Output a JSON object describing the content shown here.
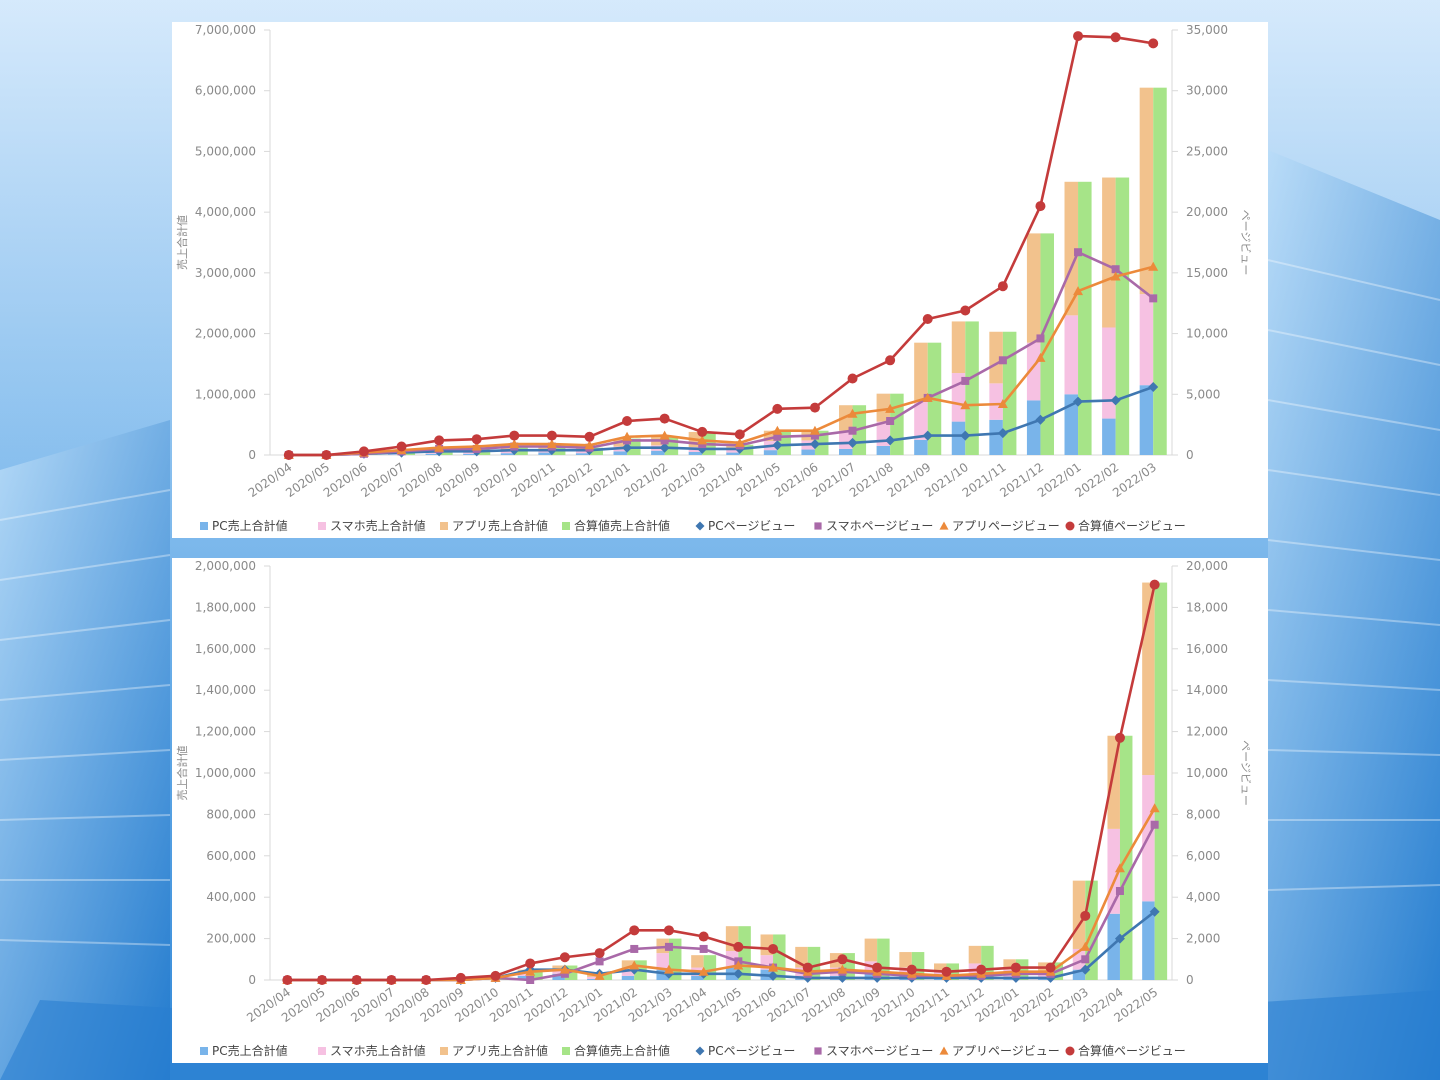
{
  "colors": {
    "pc_sales": "#79b4ea",
    "sp_sales": "#f6c1e2",
    "app_sales": "#f2c28d",
    "total_sales": "#a6e488",
    "pc_pv": "#3f77b1",
    "sp_pv": "#a969a8",
    "app_pv": "#ec8a3b",
    "total_pv": "#c43b3b"
  },
  "legend": [
    {
      "label": "PC売上合計値",
      "kind": "bar",
      "color_key": "pc_sales"
    },
    {
      "label": "スマホ売上合計値",
      "kind": "bar",
      "color_key": "sp_sales"
    },
    {
      "label": "アプリ売上合計値",
      "kind": "bar",
      "color_key": "app_sales"
    },
    {
      "label": "合算値売上合計値",
      "kind": "bar",
      "color_key": "total_sales"
    },
    {
      "label": "PCページビュー",
      "kind": "diamond",
      "color_key": "pc_pv"
    },
    {
      "label": "スマホページビュー",
      "kind": "square",
      "color_key": "sp_pv"
    },
    {
      "label": "アプリページビュー",
      "kind": "triangle",
      "color_key": "app_pv"
    },
    {
      "label": "合算値ページビュー",
      "kind": "circle",
      "color_key": "total_pv"
    }
  ],
  "chart_data": [
    {
      "type": "bar",
      "combo": "stacked bars + lines (secondary axis)",
      "ylabel": "売上合計値",
      "y2label": "ページビュー",
      "ylim": [
        0,
        7000000
      ],
      "y2lim": [
        0,
        35000
      ],
      "yticks": [
        "0",
        "1,000,000",
        "2,000,000",
        "3,000,000",
        "4,000,000",
        "5,000,000",
        "6,000,000",
        "7,000,000"
      ],
      "y2ticks": [
        "0",
        "5,000",
        "10,000",
        "15,000",
        "20,000",
        "25,000",
        "30,000",
        "35,000"
      ],
      "grid": false,
      "legend_position": "bottom",
      "categories": [
        "2020/04",
        "2020/05",
        "2020/06",
        "2020/07",
        "2020/08",
        "2020/09",
        "2020/10",
        "2020/11",
        "2020/12",
        "2021/01",
        "2021/02",
        "2021/03",
        "2021/04",
        "2021/05",
        "2021/06",
        "2021/07",
        "2021/08",
        "2021/09",
        "2021/10",
        "2021/11",
        "2021/12",
        "2022/01",
        "2022/02",
        "2022/03"
      ],
      "bar_series": [
        {
          "name": "PC売上合計値",
          "values": [
            0,
            0,
            5000,
            10000,
            20000,
            20000,
            30000,
            40000,
            30000,
            60000,
            70000,
            50000,
            40000,
            80000,
            90000,
            100000,
            150000,
            250000,
            550000,
            580000,
            900000,
            1000000,
            600000,
            1150000
          ]
        },
        {
          "name": "スマホ売上合計値",
          "values": [
            0,
            0,
            5000,
            10000,
            20000,
            25000,
            40000,
            40000,
            40000,
            80000,
            90000,
            80000,
            50000,
            150000,
            150000,
            300000,
            400000,
            650000,
            800000,
            600000,
            950000,
            1300000,
            1500000,
            1500000
          ]
        },
        {
          "name": "アプリ売上合計値",
          "values": [
            0,
            0,
            5000,
            20000,
            40000,
            45000,
            60000,
            70000,
            50000,
            130000,
            150000,
            250000,
            80000,
            170000,
            160000,
            420000,
            460000,
            950000,
            850000,
            850000,
            1800000,
            2200000,
            2470000,
            3400000
          ]
        },
        {
          "name": "合算値売上合計値",
          "values": [
            0,
            0,
            15000,
            40000,
            80000,
            90000,
            130000,
            150000,
            120000,
            270000,
            310000,
            380000,
            170000,
            400000,
            400000,
            820000,
            1010000,
            1850000,
            2200000,
            2030000,
            3650000,
            4500000,
            4570000,
            6050000
          ]
        }
      ],
      "line_series": [
        {
          "name": "PCページビュー",
          "values": [
            0,
            0,
            100,
            200,
            300,
            300,
            400,
            400,
            400,
            600,
            600,
            500,
            500,
            800,
            900,
            1000,
            1200,
            1600,
            1600,
            1800,
            2900,
            4400,
            4500,
            5600
          ]
        },
        {
          "name": "スマホページビュー",
          "values": [
            0,
            0,
            100,
            300,
            500,
            500,
            700,
            700,
            600,
            1200,
            1200,
            900,
            800,
            1500,
            1600,
            2000,
            2800,
            4700,
            6100,
            7800,
            9600,
            16700,
            15300,
            12900
          ]
        },
        {
          "name": "アプリページビュー",
          "values": [
            0,
            0,
            200,
            400,
            600,
            700,
            900,
            900,
            800,
            1500,
            1600,
            1200,
            1000,
            2000,
            2000,
            3400,
            3800,
            4700,
            4100,
            4200,
            8000,
            13500,
            14700,
            15500
          ]
        },
        {
          "name": "合算値ページビュー",
          "values": [
            0,
            0,
            300,
            700,
            1200,
            1300,
            1600,
            1600,
            1500,
            2800,
            3000,
            1900,
            1700,
            3800,
            3900,
            6300,
            7800,
            11200,
            11900,
            13900,
            20500,
            34500,
            34400,
            33900
          ]
        }
      ]
    },
    {
      "type": "bar",
      "combo": "stacked bars + lines (secondary axis)",
      "ylabel": "売上合計値",
      "y2label": "ページビュー",
      "ylim": [
        0,
        2000000
      ],
      "y2lim": [
        0,
        20000
      ],
      "yticks": [
        "0",
        "200,000",
        "400,000",
        "600,000",
        "800,000",
        "1,000,000",
        "1,200,000",
        "1,400,000",
        "1,600,000",
        "1,800,000",
        "2,000,000"
      ],
      "y2ticks": [
        "0",
        "2,000",
        "4,000",
        "6,000",
        "8,000",
        "10,000",
        "12,000",
        "14,000",
        "16,000",
        "18,000",
        "20,000"
      ],
      "grid": false,
      "legend_position": "bottom",
      "categories": [
        "2020/04",
        "2020/05",
        "2020/06",
        "2020/07",
        "2020/08",
        "2020/09",
        "2020/10",
        "2020/11",
        "2020/12",
        "2021/01",
        "2021/02",
        "2021/03",
        "2021/04",
        "2021/05",
        "2021/06",
        "2021/07",
        "2021/08",
        "2021/09",
        "2021/10",
        "2021/11",
        "2021/12",
        "2022/01",
        "2022/02",
        "2022/03",
        "2022/04",
        "2022/05"
      ],
      "bar_series": [
        {
          "name": "PC売上合計値",
          "values": [
            0,
            0,
            0,
            0,
            0,
            0,
            0,
            20000,
            30000,
            5000,
            20000,
            50000,
            20000,
            60000,
            50000,
            10000,
            20000,
            30000,
            20000,
            10000,
            20000,
            10000,
            10000,
            50000,
            320000,
            380000
          ]
        },
        {
          "name": "スマホ売上合計値",
          "values": [
            0,
            0,
            0,
            0,
            0,
            0,
            0,
            10000,
            20000,
            10000,
            30000,
            80000,
            40000,
            80000,
            70000,
            50000,
            40000,
            60000,
            40000,
            30000,
            60000,
            40000,
            30000,
            100000,
            410000,
            610000
          ]
        },
        {
          "name": "アプリ売上合計値",
          "values": [
            0,
            0,
            0,
            0,
            0,
            0,
            5000,
            20000,
            20000,
            15000,
            45000,
            70000,
            60000,
            120000,
            100000,
            100000,
            70000,
            110000,
            75000,
            40000,
            85000,
            50000,
            45000,
            330000,
            450000,
            930000
          ]
        },
        {
          "name": "合算値売上合計値",
          "values": [
            0,
            0,
            0,
            0,
            0,
            0,
            5000,
            50000,
            70000,
            30000,
            95000,
            200000,
            120000,
            260000,
            220000,
            160000,
            130000,
            200000,
            135000,
            80000,
            165000,
            100000,
            85000,
            480000,
            1180000,
            1920000
          ]
        }
      ],
      "line_series": [
        {
          "name": "PCページビュー",
          "values": [
            0,
            0,
            0,
            0,
            0,
            0,
            100,
            500,
            500,
            300,
            500,
            300,
            300,
            300,
            200,
            100,
            100,
            100,
            100,
            100,
            100,
            100,
            100,
            500,
            2000,
            3300
          ]
        },
        {
          "name": "スマホページビュー",
          "values": [
            0,
            0,
            0,
            0,
            0,
            0,
            100,
            0,
            300,
            900,
            1500,
            1600,
            1500,
            900,
            600,
            300,
            400,
            300,
            200,
            200,
            200,
            300,
            300,
            1000,
            4300,
            7500
          ]
        },
        {
          "name": "アプリページビュー",
          "values": [
            0,
            0,
            0,
            0,
            0,
            0,
            100,
            400,
            500,
            200,
            700,
            500,
            400,
            700,
            600,
            400,
            500,
            400,
            300,
            200,
            300,
            400,
            400,
            1600,
            5400,
            8300
          ]
        },
        {
          "name": "合算値ページビュー",
          "values": [
            0,
            0,
            0,
            0,
            0,
            100,
            200,
            800,
            1100,
            1300,
            2400,
            2400,
            2100,
            1600,
            1500,
            600,
            1000,
            600,
            500,
            400,
            500,
            600,
            600,
            3100,
            11700,
            19100
          ]
        }
      ]
    }
  ]
}
